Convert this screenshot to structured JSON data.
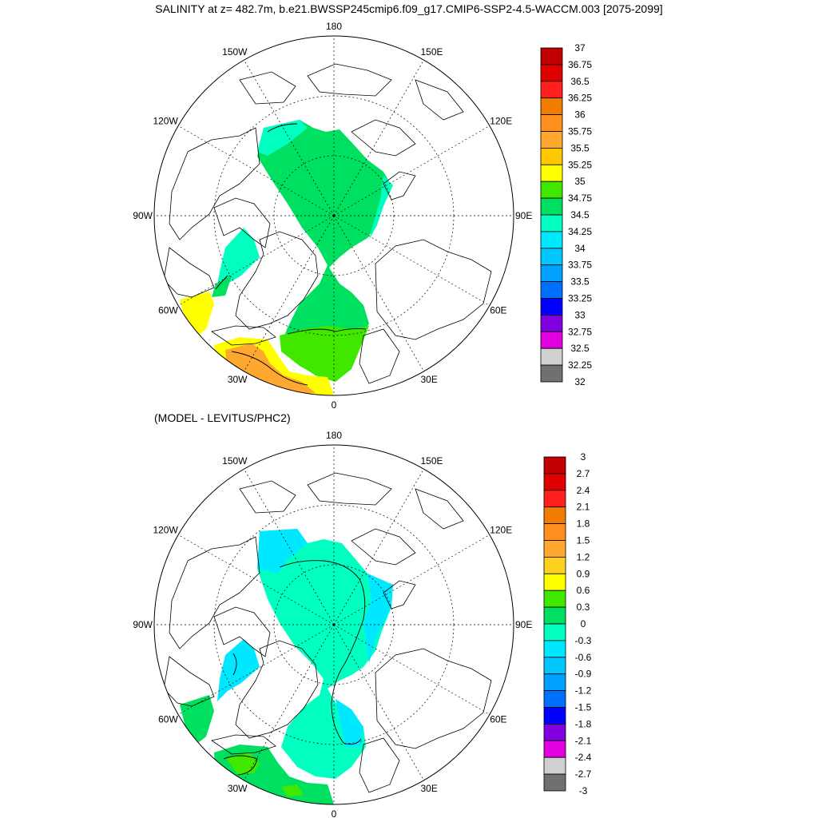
{
  "title": "SALINITY at z= 482.7m, b.e21.BWSSP245cmip6.f09_g17.CMIP6-SSP2-4.5-WACCM.003 [2075-2099]",
  "subtitle": "(MODEL - LEVITUS/PHC2)",
  "colors": {
    "ocean_land": "#ffffff",
    "coast": "#000000",
    "grid": "#000000"
  },
  "maps": [
    {
      "name": "model-salinity",
      "projection": "north-polar-stereographic",
      "lon_labels": [
        "180",
        "150E",
        "120E",
        "90E",
        "60E",
        "30E",
        "0",
        "30W",
        "60W",
        "90W",
        "120W",
        "150W"
      ],
      "legend": {
        "labels": [
          "37",
          "36.75",
          "36.5",
          "36.25",
          "36",
          "35.75",
          "35.5",
          "35.25",
          "35",
          "34.75",
          "34.5",
          "34.25",
          "34",
          "33.75",
          "33.5",
          "33.25",
          "33",
          "32.75",
          "32.5",
          "32.25",
          "32"
        ],
        "colors": [
          "#c00000",
          "#e00000",
          "#ff2020",
          "#f07d00",
          "#ff9020",
          "#ffa830",
          "#ffc800",
          "#ffff00",
          "#40e800",
          "#00e060",
          "#00ffc0",
          "#00e8ff",
          "#00c8ff",
          "#00a0ff",
          "#0070ff",
          "#0000ff",
          "#8000e0",
          "#e000e0",
          "#d0d0d0",
          "#707070"
        ]
      }
    },
    {
      "name": "model-minus-observation",
      "projection": "north-polar-stereographic",
      "lon_labels": [
        "180",
        "150E",
        "120E",
        "90E",
        "60E",
        "30E",
        "0",
        "30W",
        "60W",
        "90W",
        "120W",
        "150W"
      ],
      "legend": {
        "labels": [
          "3",
          "2.7",
          "2.4",
          "2.1",
          "1.8",
          "1.5",
          "1.2",
          "0.9",
          "0.6",
          "0.3",
          "0",
          "-0.3",
          "-0.6",
          "-0.9",
          "-1.2",
          "-1.5",
          "-1.8",
          "-2.1",
          "-2.4",
          "-2.7",
          "-3"
        ],
        "colors": [
          "#c00000",
          "#e00000",
          "#ff2020",
          "#f07d00",
          "#ff9020",
          "#ffa830",
          "#ffd020",
          "#ffff00",
          "#40e800",
          "#00e060",
          "#00ffc0",
          "#00e8ff",
          "#00c8ff",
          "#00a0ff",
          "#0070ff",
          "#0000ff",
          "#8000e0",
          "#e000e0",
          "#d0d0d0",
          "#707070"
        ]
      }
    }
  ]
}
